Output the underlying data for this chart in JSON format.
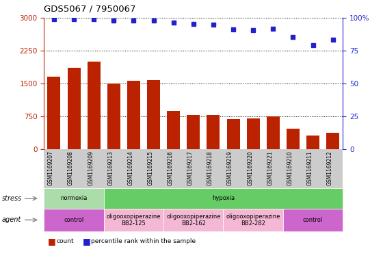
{
  "title": "GDS5067 / 7950067",
  "samples": [
    "GSM1169207",
    "GSM1169208",
    "GSM1169209",
    "GSM1169213",
    "GSM1169214",
    "GSM1169215",
    "GSM1169216",
    "GSM1169217",
    "GSM1169218",
    "GSM1169219",
    "GSM1169220",
    "GSM1169221",
    "GSM1169210",
    "GSM1169211",
    "GSM1169212"
  ],
  "counts": [
    1650,
    1850,
    2000,
    1500,
    1560,
    1570,
    870,
    780,
    780,
    680,
    700,
    750,
    470,
    310,
    370
  ],
  "percentiles": [
    98.5,
    98.5,
    98.5,
    97.5,
    97.5,
    97.5,
    96.0,
    95.0,
    94.5,
    91.0,
    90.5,
    91.5,
    85.0,
    79.0,
    83.0
  ],
  "bar_color": "#bb2200",
  "dot_color": "#2222cc",
  "left_ylim": [
    0,
    3000
  ],
  "left_yticks": [
    0,
    750,
    1500,
    2250,
    3000
  ],
  "right_ylim": [
    0,
    100
  ],
  "right_yticks": [
    0,
    25,
    50,
    75,
    100
  ],
  "right_yticklabels": [
    "0",
    "25",
    "50",
    "75",
    "100%"
  ],
  "stress_groups": [
    {
      "label": "normoxia",
      "start": 0,
      "end": 3,
      "color": "#aaddaa"
    },
    {
      "label": "hypoxia",
      "start": 3,
      "end": 15,
      "color": "#66cc66"
    }
  ],
  "agent_groups": [
    {
      "label": "control",
      "start": 0,
      "end": 3,
      "color": "#cc66cc"
    },
    {
      "label": "oligooxopiperazine\nBB2-125",
      "start": 3,
      "end": 6,
      "color": "#f4b8d4"
    },
    {
      "label": "oligooxopiperazine\nBB2-162",
      "start": 6,
      "end": 9,
      "color": "#f4b8d4"
    },
    {
      "label": "oligooxopiperazine\nBB2-282",
      "start": 9,
      "end": 12,
      "color": "#f4b8d4"
    },
    {
      "label": "control",
      "start": 12,
      "end": 15,
      "color": "#cc66cc"
    }
  ],
  "bar_width": 0.65,
  "tick_bg_color": "#cccccc",
  "fig_bg": "#ffffff"
}
